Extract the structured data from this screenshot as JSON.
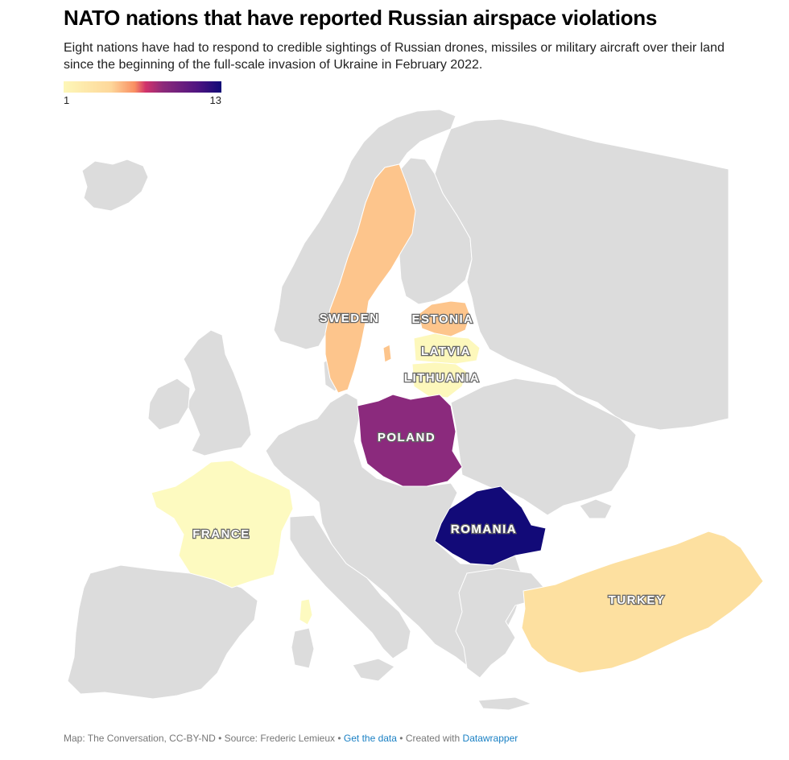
{
  "title": "NATO nations that have reported Russian airspace violations",
  "subtitle": "Eight nations have had to respond to credible sightings of Russian drones, missiles or military aircraft over their land since the beginning of the full-scale invasion of Ukraine in February 2022.",
  "legend": {
    "min": "1",
    "max": "13"
  },
  "colors": {
    "background_land": "#dcdcdc",
    "border": "#ffffff",
    "scale_low": "#fdf7b8",
    "scale_high": "#100a76"
  },
  "countries": [
    {
      "name": "SWEDEN",
      "color": "#fdc58c"
    },
    {
      "name": "ESTONIA",
      "color": "#fdc58c"
    },
    {
      "name": "LATVIA",
      "color": "#fdf8bc"
    },
    {
      "name": "LITHUANIA",
      "color": "#fdf8bc"
    },
    {
      "name": "POLAND",
      "color": "#8b2a7d"
    },
    {
      "name": "FRANCE",
      "color": "#fdfac0"
    },
    {
      "name": "ROMANIA",
      "color": "#120a78"
    },
    {
      "name": "TURKEY",
      "color": "#fde0a0"
    }
  ],
  "footer": {
    "map_credit": "Map: The Conversation, CC-BY-ND",
    "separator": " • ",
    "source": "Source: Frederic Lemieux",
    "get_data": "Get the data",
    "created_with": "Created with",
    "tool": "Datawrapper"
  }
}
